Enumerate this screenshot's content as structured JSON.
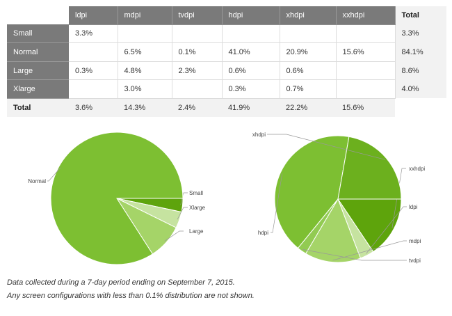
{
  "table": {
    "columns": [
      "ldpi",
      "mdpi",
      "tvdpi",
      "hdpi",
      "xhdpi",
      "xxhdpi"
    ],
    "total_label": "Total",
    "rows": [
      {
        "label": "Small",
        "cells": [
          "3.3%",
          "",
          "",
          "",
          "",
          ""
        ],
        "total": "3.3%"
      },
      {
        "label": "Normal",
        "cells": [
          "",
          "6.5%",
          "0.1%",
          "41.0%",
          "20.9%",
          "15.6%"
        ],
        "total": "84.1%"
      },
      {
        "label": "Large",
        "cells": [
          "0.3%",
          "4.8%",
          "2.3%",
          "0.6%",
          "0.6%",
          ""
        ],
        "total": "8.6%"
      },
      {
        "label": "Xlarge",
        "cells": [
          "",
          "3.0%",
          "",
          "0.3%",
          "0.7%",
          ""
        ],
        "total": "4.0%"
      }
    ],
    "totals_row": {
      "label": "Total",
      "cells": [
        "3.6%",
        "14.3%",
        "2.4%",
        "41.9%",
        "22.2%",
        "15.6%"
      ]
    }
  },
  "chart_data": [
    {
      "type": "pie",
      "title": "",
      "slices": [
        {
          "label": "Small",
          "value": 3.3,
          "color": "#5ea40c"
        },
        {
          "label": "Xlarge",
          "value": 4.0,
          "color": "#c6e3a0"
        },
        {
          "label": "Large",
          "value": 8.6,
          "color": "#a5d468"
        },
        {
          "label": "Normal",
          "value": 84.1,
          "color": "#7dbf32"
        }
      ]
    },
    {
      "type": "pie",
      "title": "",
      "slices": [
        {
          "label": "xxhdpi",
          "value": 15.6,
          "color": "#5ea40c"
        },
        {
          "label": "ldpi",
          "value": 3.6,
          "color": "#c6e3a0"
        },
        {
          "label": "mdpi",
          "value": 14.3,
          "color": "#a5d468"
        },
        {
          "label": "tvdpi",
          "value": 2.4,
          "color": "#92cb52"
        },
        {
          "label": "hdpi",
          "value": 41.9,
          "color": "#7dbf32"
        },
        {
          "label": "xhdpi",
          "value": 22.2,
          "color": "#6cb01e"
        }
      ]
    }
  ],
  "notes": [
    "Data collected during a 7-day period ending on September 7, 2015.",
    "Any screen configurations with less than 0.1% distribution are not shown."
  ]
}
